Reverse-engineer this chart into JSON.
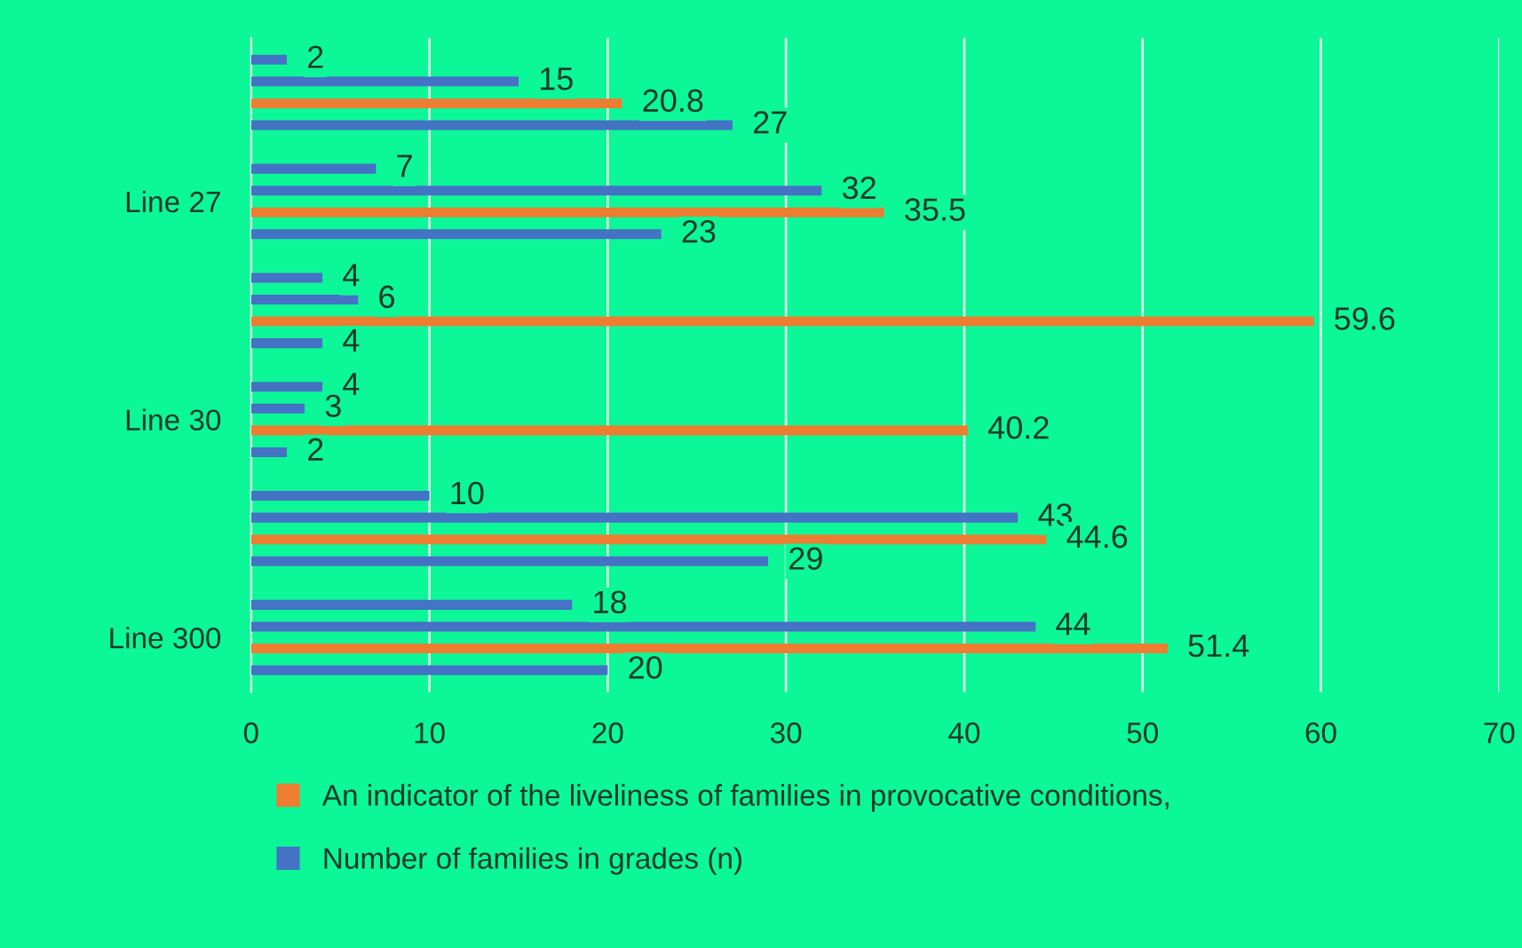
{
  "chart_data": {
    "type": "bar",
    "orientation": "horizontal",
    "categories": [
      null,
      "Line 27",
      null,
      "Line 30",
      null,
      "Line 300"
    ],
    "series": [
      {
        "color": "#4472c4",
        "values": [
          2,
          7,
          4,
          4,
          10,
          18
        ]
      },
      {
        "color": "#4472c4",
        "values": [
          15,
          32,
          6,
          3,
          43,
          44
        ]
      },
      {
        "name": "An indicator of the liveliness of families in provocative conditions,",
        "color": "#ed7d31",
        "values": [
          20.8,
          35.5,
          59.6,
          40.2,
          44.6,
          51.4
        ]
      },
      {
        "name": "Number of families in grades (n)",
        "color": "#4472c4",
        "values": [
          27,
          23,
          4,
          2,
          29,
          20
        ]
      }
    ],
    "xlim": [
      0,
      70
    ],
    "xticks": [
      0,
      10,
      20,
      30,
      40,
      50,
      60,
      70
    ],
    "grid": "x",
    "legend": "bottom",
    "data_labels": true
  }
}
